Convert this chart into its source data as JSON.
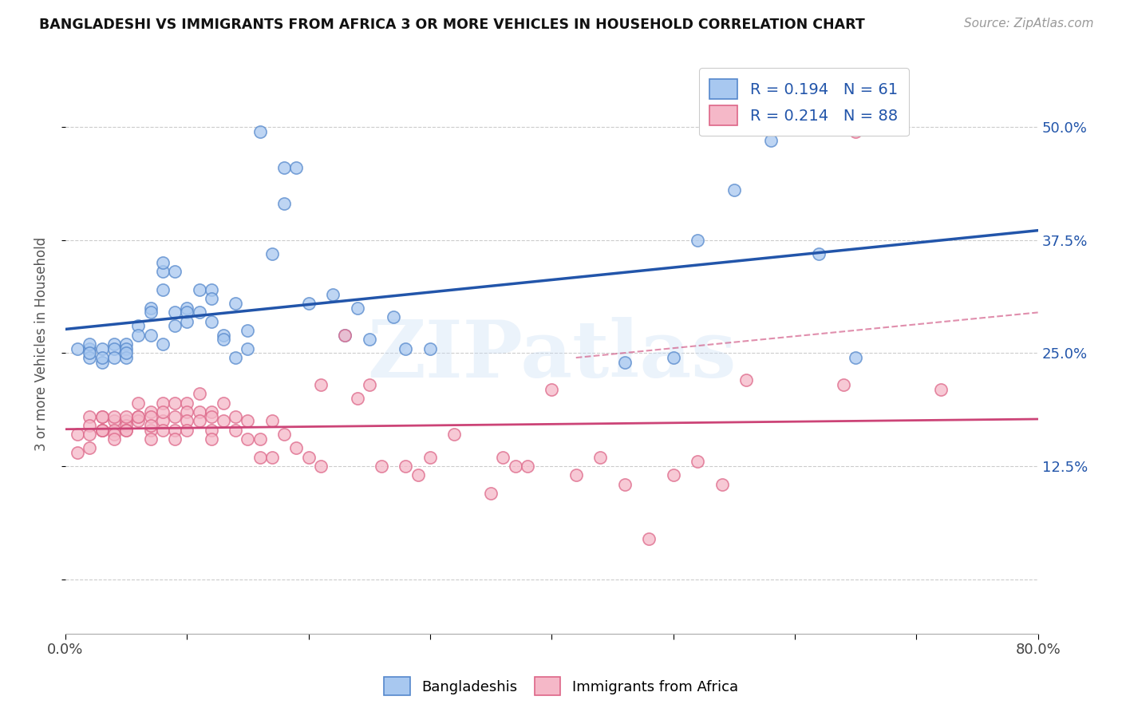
{
  "title": "BANGLADESHI VS IMMIGRANTS FROM AFRICA 3 OR MORE VEHICLES IN HOUSEHOLD CORRELATION CHART",
  "source": "Source: ZipAtlas.com",
  "ylabel": "3 or more Vehicles in Household",
  "yticks": [
    0.0,
    0.125,
    0.25,
    0.375,
    0.5
  ],
  "ytick_labels": [
    "",
    "12.5%",
    "25.0%",
    "37.5%",
    "50.0%"
  ],
  "xlim": [
    0.0,
    0.8
  ],
  "ylim": [
    -0.06,
    0.58
  ],
  "blue_R": 0.194,
  "blue_N": 61,
  "pink_R": 0.214,
  "pink_N": 88,
  "blue_color": "#a8c8f0",
  "pink_color": "#f5b8c8",
  "blue_edge_color": "#5588cc",
  "pink_edge_color": "#dd6688",
  "blue_line_color": "#2255aa",
  "pink_line_color": "#cc4477",
  "grid_color": "#cccccc",
  "background_color": "#ffffff",
  "watermark": "ZIPatlas",
  "legend_label_blue": "Bangladeshis",
  "legend_label_pink": "Immigrants from Africa",
  "blue_scatter_x": [
    0.01,
    0.02,
    0.02,
    0.02,
    0.02,
    0.03,
    0.03,
    0.03,
    0.04,
    0.04,
    0.04,
    0.05,
    0.05,
    0.05,
    0.05,
    0.06,
    0.06,
    0.07,
    0.07,
    0.07,
    0.08,
    0.08,
    0.08,
    0.08,
    0.09,
    0.09,
    0.09,
    0.1,
    0.1,
    0.1,
    0.11,
    0.11,
    0.12,
    0.12,
    0.12,
    0.13,
    0.13,
    0.14,
    0.14,
    0.15,
    0.15,
    0.16,
    0.17,
    0.18,
    0.18,
    0.19,
    0.2,
    0.22,
    0.23,
    0.24,
    0.25,
    0.27,
    0.28,
    0.3,
    0.46,
    0.5,
    0.52,
    0.55,
    0.58,
    0.62,
    0.65
  ],
  "blue_scatter_y": [
    0.255,
    0.255,
    0.26,
    0.245,
    0.25,
    0.24,
    0.255,
    0.245,
    0.26,
    0.255,
    0.245,
    0.26,
    0.255,
    0.245,
    0.25,
    0.28,
    0.27,
    0.3,
    0.295,
    0.27,
    0.32,
    0.34,
    0.35,
    0.26,
    0.28,
    0.34,
    0.295,
    0.3,
    0.295,
    0.285,
    0.32,
    0.295,
    0.32,
    0.31,
    0.285,
    0.27,
    0.265,
    0.305,
    0.245,
    0.275,
    0.255,
    0.495,
    0.36,
    0.415,
    0.455,
    0.455,
    0.305,
    0.315,
    0.27,
    0.3,
    0.265,
    0.29,
    0.255,
    0.255,
    0.24,
    0.245,
    0.375,
    0.43,
    0.485,
    0.36,
    0.245
  ],
  "pink_scatter_x": [
    0.01,
    0.01,
    0.02,
    0.02,
    0.02,
    0.02,
    0.03,
    0.03,
    0.03,
    0.03,
    0.03,
    0.04,
    0.04,
    0.04,
    0.04,
    0.04,
    0.05,
    0.05,
    0.05,
    0.05,
    0.05,
    0.06,
    0.06,
    0.06,
    0.06,
    0.07,
    0.07,
    0.07,
    0.07,
    0.07,
    0.08,
    0.08,
    0.08,
    0.08,
    0.09,
    0.09,
    0.09,
    0.09,
    0.1,
    0.1,
    0.1,
    0.1,
    0.11,
    0.11,
    0.11,
    0.12,
    0.12,
    0.12,
    0.12,
    0.13,
    0.13,
    0.14,
    0.14,
    0.15,
    0.15,
    0.16,
    0.16,
    0.17,
    0.17,
    0.18,
    0.19,
    0.2,
    0.21,
    0.21,
    0.23,
    0.24,
    0.25,
    0.26,
    0.28,
    0.29,
    0.3,
    0.32,
    0.35,
    0.36,
    0.37,
    0.38,
    0.4,
    0.42,
    0.44,
    0.46,
    0.48,
    0.5,
    0.52,
    0.54,
    0.56,
    0.64,
    0.65,
    0.72
  ],
  "pink_scatter_y": [
    0.16,
    0.14,
    0.18,
    0.17,
    0.145,
    0.16,
    0.165,
    0.18,
    0.165,
    0.18,
    0.165,
    0.175,
    0.165,
    0.18,
    0.16,
    0.155,
    0.175,
    0.17,
    0.165,
    0.18,
    0.165,
    0.18,
    0.195,
    0.175,
    0.18,
    0.185,
    0.18,
    0.165,
    0.155,
    0.17,
    0.195,
    0.175,
    0.185,
    0.165,
    0.195,
    0.18,
    0.165,
    0.155,
    0.195,
    0.185,
    0.175,
    0.165,
    0.205,
    0.185,
    0.175,
    0.185,
    0.18,
    0.165,
    0.155,
    0.195,
    0.175,
    0.18,
    0.165,
    0.175,
    0.155,
    0.155,
    0.135,
    0.175,
    0.135,
    0.16,
    0.145,
    0.135,
    0.125,
    0.215,
    0.27,
    0.2,
    0.215,
    0.125,
    0.125,
    0.115,
    0.135,
    0.16,
    0.095,
    0.135,
    0.125,
    0.125,
    0.21,
    0.115,
    0.135,
    0.105,
    0.045,
    0.115,
    0.13,
    0.105,
    0.22,
    0.215,
    0.495,
    0.21
  ]
}
